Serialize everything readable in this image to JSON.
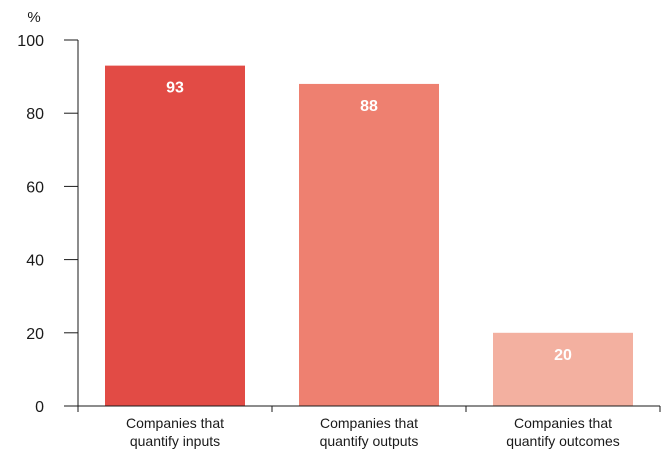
{
  "chart_data": {
    "type": "bar",
    "ylabel": "%",
    "ylim": [
      0,
      100
    ],
    "yticks": [
      0,
      20,
      40,
      60,
      80,
      100
    ],
    "categories": [
      [
        "Companies that",
        "quantify inputs"
      ],
      [
        "Companies that",
        "quantify outputs"
      ],
      [
        "Companies that",
        "quantify outcomes"
      ]
    ],
    "values": [
      93,
      88,
      20
    ],
    "data_labels": [
      "93",
      "88",
      "20"
    ],
    "colors": [
      "#e24b45",
      "#ee8070",
      "#f3b0a0"
    ],
    "grid": false,
    "legend": "none"
  }
}
